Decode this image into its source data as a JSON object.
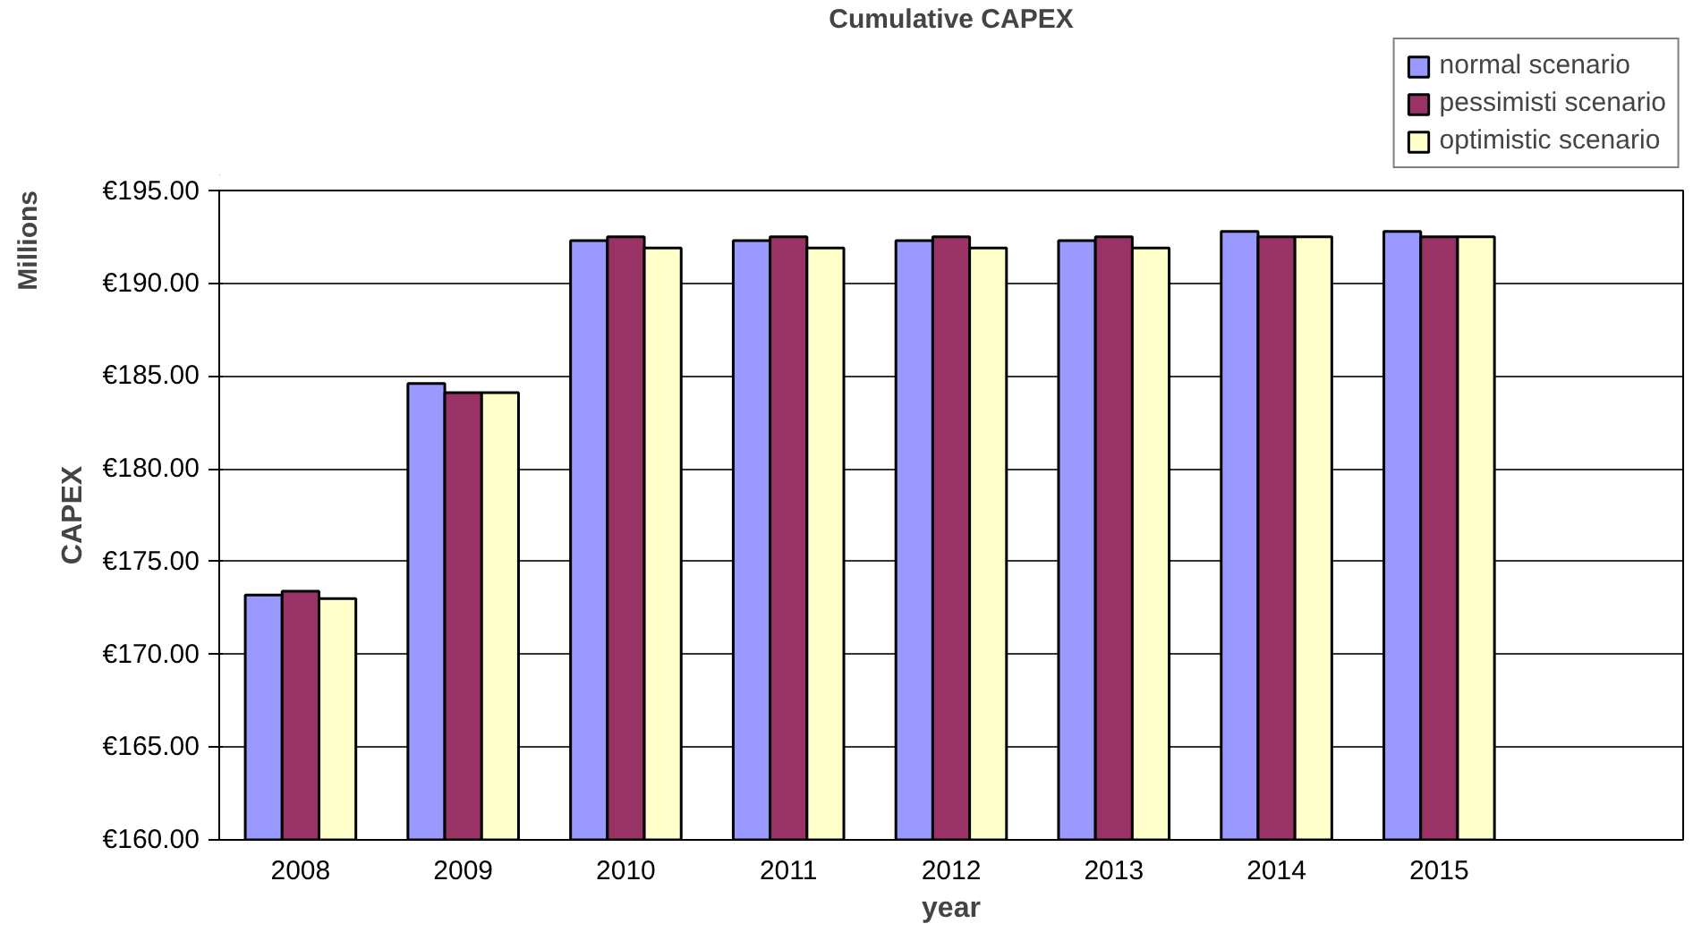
{
  "chart_data": {
    "type": "bar",
    "title": "Cumulative CAPEX",
    "xlabel": "year",
    "ylabel": "CAPEX",
    "annotations": [
      "Millions"
    ],
    "categories": [
      "2008",
      "2009",
      "2010",
      "2011",
      "2012",
      "2013",
      "2014",
      "2015",
      null
    ],
    "series": [
      {
        "name": "normal scenario",
        "color": "#9999ff",
        "values": [
          173.2,
          184.6,
          192.3,
          192.3,
          192.3,
          192.3,
          192.8,
          192.8,
          null
        ]
      },
      {
        "name": "pessimisti scenario",
        "color": "#993366",
        "values": [
          173.4,
          184.1,
          192.5,
          192.5,
          192.5,
          192.5,
          192.5,
          192.5,
          null
        ]
      },
      {
        "name": "optimistic scenario",
        "color": "#ffffcc",
        "values": [
          173.0,
          184.1,
          191.9,
          191.9,
          191.9,
          191.9,
          192.5,
          192.5,
          null
        ]
      }
    ],
    "ylim": [
      160,
      195
    ],
    "yticks": [
      {
        "value": 160,
        "label": "€160.00"
      },
      {
        "value": 165,
        "label": "€165.00"
      },
      {
        "value": 170,
        "label": "€170.00"
      },
      {
        "value": 175,
        "label": "€175.00"
      },
      {
        "value": 180,
        "label": "€180.00"
      },
      {
        "value": 185,
        "label": "€185.00"
      },
      {
        "value": 190,
        "label": "€190.00"
      },
      {
        "value": 195,
        "label": "€195.00"
      }
    ],
    "grid": "y",
    "legend": "top right"
  }
}
